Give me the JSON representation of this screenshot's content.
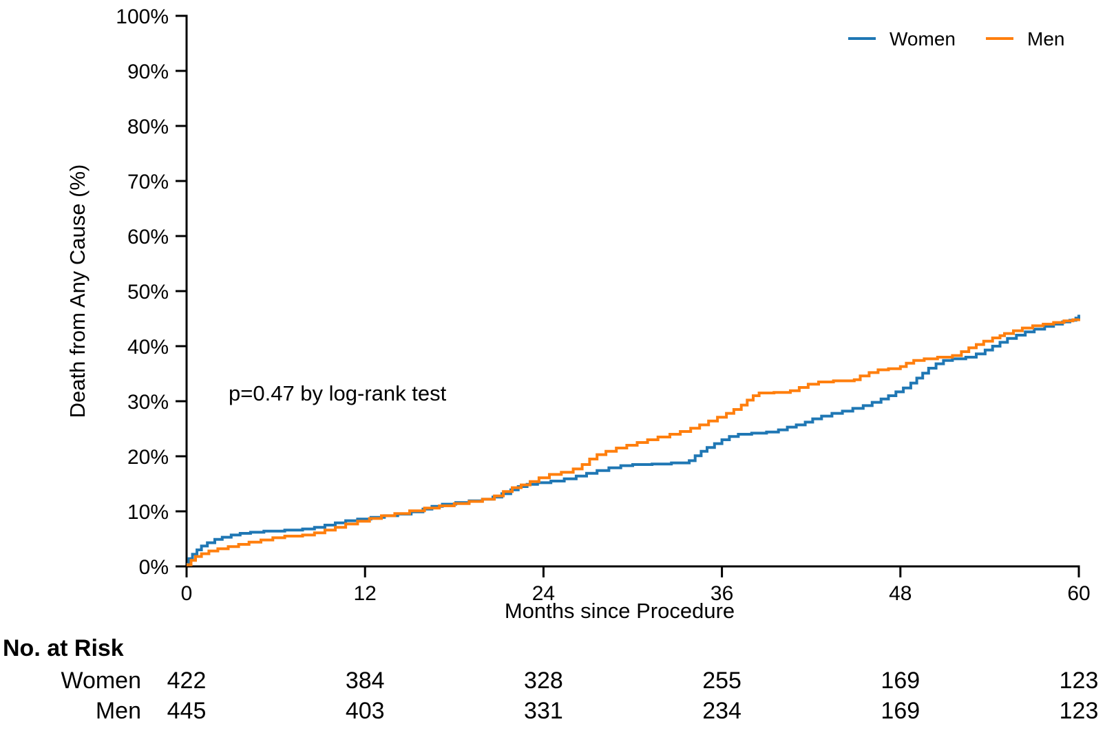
{
  "chart_data": {
    "type": "line",
    "subtype": "kaplan_meier_step",
    "title": "",
    "xlabel": "Months since Procedure",
    "ylabel": "Death from Any Cause (%)",
    "annotation": "p=0.47 by log-rank test",
    "grid": false,
    "legend_position": "top-right",
    "x_axis": {
      "range": [
        0,
        60
      ],
      "ticks": [
        0,
        12,
        24,
        36,
        48,
        60
      ],
      "tick_labels": [
        "0",
        "12",
        "24",
        "36",
        "48",
        "60"
      ]
    },
    "y_axis": {
      "range": [
        0,
        100
      ],
      "ticks": [
        0,
        10,
        20,
        30,
        40,
        50,
        60,
        70,
        80,
        90,
        100
      ],
      "tick_labels": [
        "0%",
        "10%",
        "20%",
        "30%",
        "40%",
        "50%",
        "60%",
        "70%",
        "80%",
        "90%",
        "100%"
      ]
    },
    "series": [
      {
        "name": "Women",
        "color": "#1f77b4",
        "points": [
          [
            0,
            0.4
          ],
          [
            0.15,
            1.4
          ],
          [
            0.4,
            2.2
          ],
          [
            0.7,
            3
          ],
          [
            1,
            3.7
          ],
          [
            1.4,
            4.3
          ],
          [
            1.9,
            4.9
          ],
          [
            2.4,
            5.3
          ],
          [
            3,
            5.7
          ],
          [
            3.6,
            6
          ],
          [
            4.3,
            6.2
          ],
          [
            5.2,
            6.4
          ],
          [
            6.6,
            6.6
          ],
          [
            7.8,
            6.8
          ],
          [
            8.6,
            7.1
          ],
          [
            9.3,
            7.5
          ],
          [
            10,
            7.9
          ],
          [
            10.7,
            8.3
          ],
          [
            11.5,
            8.6
          ],
          [
            12.4,
            8.9
          ],
          [
            13.3,
            9.2
          ],
          [
            14.2,
            9.5
          ],
          [
            15.1,
            9.9
          ],
          [
            15.9,
            10.4
          ],
          [
            16.5,
            10.9
          ],
          [
            17.2,
            11.3
          ],
          [
            18.1,
            11.6
          ],
          [
            19,
            11.9
          ],
          [
            19.9,
            12.2
          ],
          [
            20.6,
            12.6
          ],
          [
            21.2,
            13.2
          ],
          [
            21.8,
            13.9
          ],
          [
            22.3,
            14.5
          ],
          [
            22.9,
            14.9
          ],
          [
            23.6,
            15.2
          ],
          [
            24.5,
            15.5
          ],
          [
            25.4,
            15.9
          ],
          [
            26.2,
            16.4
          ],
          [
            26.9,
            16.9
          ],
          [
            27.6,
            17.4
          ],
          [
            28.4,
            17.9
          ],
          [
            29.2,
            18.3
          ],
          [
            30,
            18.5
          ],
          [
            31.3,
            18.6
          ],
          [
            32.6,
            18.8
          ],
          [
            33.8,
            19.2
          ],
          [
            34.2,
            20.1
          ],
          [
            34.6,
            20.9
          ],
          [
            35,
            21.6
          ],
          [
            35.5,
            22.3
          ],
          [
            36,
            23
          ],
          [
            36.5,
            23.6
          ],
          [
            37.1,
            24
          ],
          [
            38,
            24.2
          ],
          [
            39,
            24.4
          ],
          [
            39.8,
            24.8
          ],
          [
            40.4,
            25.3
          ],
          [
            41,
            25.7
          ],
          [
            41.6,
            26.2
          ],
          [
            42.1,
            26.8
          ],
          [
            42.7,
            27.3
          ],
          [
            43.4,
            27.8
          ],
          [
            44.1,
            28.2
          ],
          [
            44.8,
            28.7
          ],
          [
            45.5,
            29.2
          ],
          [
            46.1,
            29.8
          ],
          [
            46.7,
            30.4
          ],
          [
            47.2,
            31
          ],
          [
            47.7,
            31.7
          ],
          [
            48.2,
            32.4
          ],
          [
            48.7,
            33.3
          ],
          [
            49.1,
            34.2
          ],
          [
            49.5,
            35.1
          ],
          [
            49.9,
            36
          ],
          [
            50.4,
            36.8
          ],
          [
            50.9,
            37.4
          ],
          [
            51.5,
            37.7
          ],
          [
            52.4,
            38
          ],
          [
            53.1,
            38.6
          ],
          [
            53.7,
            39.3
          ],
          [
            54.2,
            40
          ],
          [
            54.7,
            40.7
          ],
          [
            55.2,
            41.4
          ],
          [
            55.8,
            42
          ],
          [
            56.4,
            42.6
          ],
          [
            57,
            43.1
          ],
          [
            57.7,
            43.6
          ],
          [
            58.3,
            44
          ],
          [
            58.9,
            44.4
          ],
          [
            59.4,
            44.7
          ],
          [
            59.8,
            45.1
          ],
          [
            60,
            45.7
          ]
        ]
      },
      {
        "name": "Men",
        "color": "#ff7f0e",
        "points": [
          [
            0,
            0.3
          ],
          [
            0.3,
            1.1
          ],
          [
            0.6,
            1.8
          ],
          [
            1,
            2.3
          ],
          [
            1.5,
            2.8
          ],
          [
            2.1,
            3.2
          ],
          [
            2.8,
            3.6
          ],
          [
            3.5,
            4
          ],
          [
            4.2,
            4.4
          ],
          [
            5,
            4.8
          ],
          [
            5.8,
            5.2
          ],
          [
            6.6,
            5.5
          ],
          [
            7.8,
            5.7
          ],
          [
            8.6,
            6.1
          ],
          [
            9.3,
            6.6
          ],
          [
            10,
            7.1
          ],
          [
            10.7,
            7.7
          ],
          [
            11.5,
            8.2
          ],
          [
            12.3,
            8.7
          ],
          [
            13.1,
            9.2
          ],
          [
            14,
            9.6
          ],
          [
            15,
            10.1
          ],
          [
            16,
            10.6
          ],
          [
            17,
            11
          ],
          [
            18,
            11.4
          ],
          [
            19,
            11.8
          ],
          [
            19.9,
            12.2
          ],
          [
            20.7,
            12.8
          ],
          [
            21.3,
            13.6
          ],
          [
            21.9,
            14.3
          ],
          [
            22.5,
            14.8
          ],
          [
            23.1,
            15.4
          ],
          [
            23.7,
            16.1
          ],
          [
            24.4,
            16.7
          ],
          [
            25.2,
            17.1
          ],
          [
            26,
            17.7
          ],
          [
            26.6,
            18.5
          ],
          [
            27.1,
            19.5
          ],
          [
            27.6,
            20.3
          ],
          [
            28.2,
            20.9
          ],
          [
            28.9,
            21.5
          ],
          [
            29.6,
            22
          ],
          [
            30.3,
            22.5
          ],
          [
            31,
            23
          ],
          [
            31.7,
            23.5
          ],
          [
            32.5,
            24
          ],
          [
            33.2,
            24.5
          ],
          [
            33.9,
            25.1
          ],
          [
            34.5,
            25.7
          ],
          [
            35.1,
            26.4
          ],
          [
            35.7,
            27.1
          ],
          [
            36.3,
            27.8
          ],
          [
            36.8,
            28.5
          ],
          [
            37.3,
            29.3
          ],
          [
            37.7,
            30.2
          ],
          [
            38.1,
            31
          ],
          [
            38.5,
            31.5
          ],
          [
            39.5,
            31.6
          ],
          [
            40.6,
            31.9
          ],
          [
            41.2,
            32.5
          ],
          [
            41.8,
            33.1
          ],
          [
            42.5,
            33.5
          ],
          [
            43.5,
            33.7
          ],
          [
            44.9,
            33.9
          ],
          [
            45.3,
            34.6
          ],
          [
            45.9,
            35.2
          ],
          [
            46.5,
            35.7
          ],
          [
            47.2,
            35.9
          ],
          [
            48,
            36.3
          ],
          [
            48.4,
            36.9
          ],
          [
            48.9,
            37.4
          ],
          [
            49.6,
            37.7
          ],
          [
            50.5,
            38
          ],
          [
            51.5,
            38.3
          ],
          [
            52.1,
            39
          ],
          [
            52.6,
            39.7
          ],
          [
            53.1,
            40.3
          ],
          [
            53.6,
            40.9
          ],
          [
            54.2,
            41.5
          ],
          [
            54.7,
            41.9
          ],
          [
            55,
            42.3
          ],
          [
            55.6,
            42.8
          ],
          [
            56.2,
            43.3
          ],
          [
            56.9,
            43.7
          ],
          [
            57.6,
            44
          ],
          [
            58.3,
            44.3
          ],
          [
            59,
            44.6
          ],
          [
            59.6,
            44.8
          ],
          [
            60,
            45
          ]
        ]
      }
    ],
    "no_at_risk": {
      "title": "No. at Risk",
      "time_points": [
        0,
        12,
        24,
        36,
        48,
        60
      ],
      "rows": [
        {
          "name": "Women",
          "values": [
            422,
            384,
            328,
            255,
            169,
            123
          ]
        },
        {
          "name": "Men",
          "values": [
            445,
            403,
            331,
            234,
            169,
            123
          ]
        }
      ]
    },
    "axis_color": "#000000",
    "background_color": "#ffffff"
  }
}
